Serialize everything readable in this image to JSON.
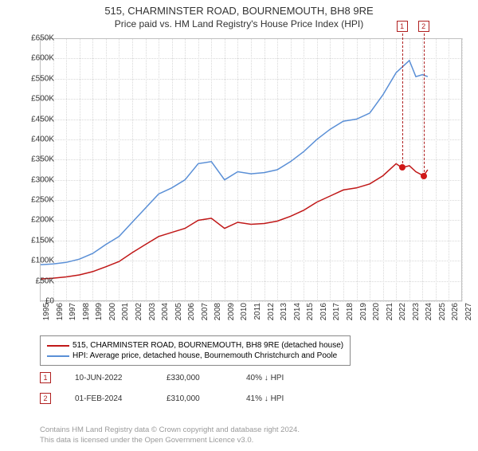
{
  "title": {
    "main": "515, CHARMINSTER ROAD, BOURNEMOUTH, BH8 9RE",
    "sub": "Price paid vs. HM Land Registry's House Price Index (HPI)"
  },
  "chart": {
    "type": "line",
    "background_color": "#ffffff",
    "grid_color": "#d8d8d8",
    "border_color": "#c0c0c0",
    "y": {
      "min": 0,
      "max": 650000,
      "step": 50000,
      "format_prefix": "£",
      "format_suffix": "K",
      "ticks": [
        "£0",
        "£50K",
        "£100K",
        "£150K",
        "£200K",
        "£250K",
        "£300K",
        "£350K",
        "£400K",
        "£450K",
        "£500K",
        "£550K",
        "£600K",
        "£650K"
      ]
    },
    "x": {
      "min": 1995,
      "max": 2027,
      "step": 1,
      "ticks": [
        "1995",
        "1996",
        "1997",
        "1998",
        "1999",
        "2000",
        "2001",
        "2002",
        "2003",
        "2004",
        "2005",
        "2006",
        "2007",
        "2008",
        "2009",
        "2010",
        "2011",
        "2012",
        "2013",
        "2014",
        "2015",
        "2016",
        "2017",
        "2018",
        "2019",
        "2020",
        "2021",
        "2022",
        "2023",
        "2024",
        "2025",
        "2026",
        "2027"
      ]
    },
    "series": [
      {
        "name": "price_paid",
        "label": "515, CHARMINSTER ROAD, BOURNEMOUTH, BH8 9RE (detached house)",
        "color": "#c01818",
        "line_width": 1.5,
        "points": [
          [
            1995,
            55000
          ],
          [
            1996,
            57000
          ],
          [
            1997,
            60000
          ],
          [
            1998,
            65000
          ],
          [
            1999,
            73000
          ],
          [
            2000,
            85000
          ],
          [
            2001,
            98000
          ],
          [
            2002,
            120000
          ],
          [
            2003,
            140000
          ],
          [
            2004,
            160000
          ],
          [
            2005,
            170000
          ],
          [
            2006,
            180000
          ],
          [
            2007,
            200000
          ],
          [
            2008,
            205000
          ],
          [
            2009,
            180000
          ],
          [
            2010,
            195000
          ],
          [
            2011,
            190000
          ],
          [
            2012,
            192000
          ],
          [
            2013,
            198000
          ],
          [
            2014,
            210000
          ],
          [
            2015,
            225000
          ],
          [
            2016,
            245000
          ],
          [
            2017,
            260000
          ],
          [
            2018,
            275000
          ],
          [
            2019,
            280000
          ],
          [
            2020,
            290000
          ],
          [
            2021,
            310000
          ],
          [
            2022,
            340000
          ],
          [
            2022.45,
            330000
          ],
          [
            2023,
            335000
          ],
          [
            2023.5,
            320000
          ],
          [
            2024.08,
            310000
          ],
          [
            2024.4,
            325000
          ]
        ]
      },
      {
        "name": "hpi",
        "label": "HPI: Average price, detached house, Bournemouth Christchurch and Poole",
        "color": "#5a8fd6",
        "line_width": 1.5,
        "points": [
          [
            1995,
            90000
          ],
          [
            1996,
            92000
          ],
          [
            1997,
            96000
          ],
          [
            1998,
            104000
          ],
          [
            1999,
            118000
          ],
          [
            2000,
            140000
          ],
          [
            2001,
            160000
          ],
          [
            2002,
            195000
          ],
          [
            2003,
            230000
          ],
          [
            2004,
            265000
          ],
          [
            2005,
            280000
          ],
          [
            2006,
            300000
          ],
          [
            2007,
            340000
          ],
          [
            2008,
            345000
          ],
          [
            2009,
            300000
          ],
          [
            2010,
            320000
          ],
          [
            2011,
            315000
          ],
          [
            2012,
            318000
          ],
          [
            2013,
            325000
          ],
          [
            2014,
            345000
          ],
          [
            2015,
            370000
          ],
          [
            2016,
            400000
          ],
          [
            2017,
            425000
          ],
          [
            2018,
            445000
          ],
          [
            2019,
            450000
          ],
          [
            2020,
            465000
          ],
          [
            2021,
            510000
          ],
          [
            2022,
            565000
          ],
          [
            2023,
            595000
          ],
          [
            2023.5,
            555000
          ],
          [
            2024,
            560000
          ],
          [
            2024.4,
            555000
          ]
        ]
      }
    ],
    "sale_markers": [
      {
        "id": "1",
        "year": 2022.45,
        "price": 330000
      },
      {
        "id": "2",
        "year": 2024.08,
        "price": 310000
      }
    ],
    "sale_dot_color": "#d01818",
    "annot_box_color": "#b02020"
  },
  "legend": {
    "items": [
      {
        "color": "#c01818",
        "label": "515, CHARMINSTER ROAD, BOURNEMOUTH, BH8 9RE (detached house)"
      },
      {
        "color": "#5a8fd6",
        "label": "HPI: Average price, detached house, Bournemouth Christchurch and Poole"
      }
    ]
  },
  "sales_table": {
    "rows": [
      {
        "marker": "1",
        "date": "10-JUN-2022",
        "price": "£330,000",
        "delta": "40%",
        "arrow": "↓",
        "vs": "HPI"
      },
      {
        "marker": "2",
        "date": "01-FEB-2024",
        "price": "£310,000",
        "delta": "41%",
        "arrow": "↓",
        "vs": "HPI"
      }
    ]
  },
  "copyright": {
    "line1": "Contains HM Land Registry data © Crown copyright and database right 2024.",
    "line2": "This data is licensed under the Open Government Licence v3.0."
  }
}
